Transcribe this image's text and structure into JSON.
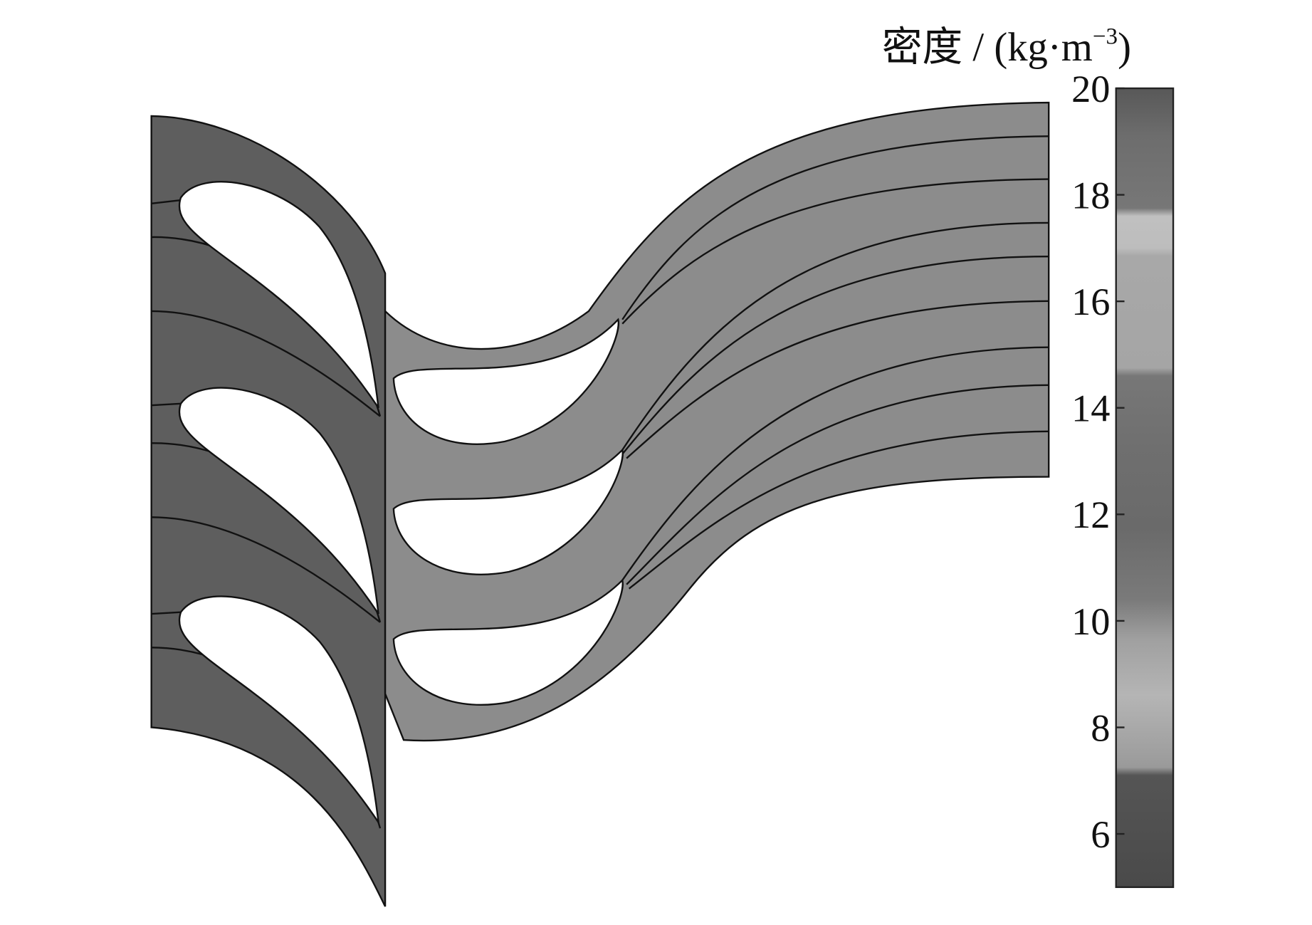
{
  "chart_data": {
    "type": "contour",
    "colorbar_label": [
      "密度 / (kg·m",
      "−3",
      ")"
    ],
    "clim": [
      5,
      20
    ],
    "colorbar_ticks": [
      6,
      8,
      10,
      12,
      14,
      16,
      18,
      20
    ]
  }
}
